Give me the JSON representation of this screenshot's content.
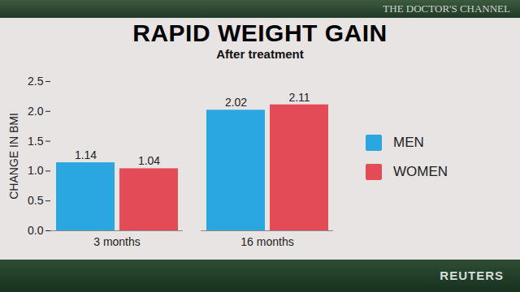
{
  "chart_data": {
    "type": "bar",
    "title": "RAPID WEIGHT GAIN",
    "subtitle": "After treatment",
    "y_label": "CHANGE IN BMI",
    "categories": [
      "3 months",
      "16 months"
    ],
    "series": [
      {
        "name": "MEN",
        "color": "#2aa7e0",
        "values": [
          1.14,
          2.02
        ]
      },
      {
        "name": "WOMEN",
        "color": "#e34b57",
        "values": [
          1.04,
          2.11
        ]
      }
    ],
    "ylim": [
      0,
      2.5
    ],
    "yticks": [
      {
        "value": 0,
        "label": "0.0"
      },
      0.5,
      {
        "value": 1,
        "label": "1.0"
      },
      1.5,
      {
        "value": 2,
        "label": "2.0"
      },
      2.5
    ],
    "grid": false,
    "legend": "right",
    "data_labels": true,
    "annotations": [
      "THE DOCTOR'S CHANNEL",
      "REUTERS"
    ]
  }
}
